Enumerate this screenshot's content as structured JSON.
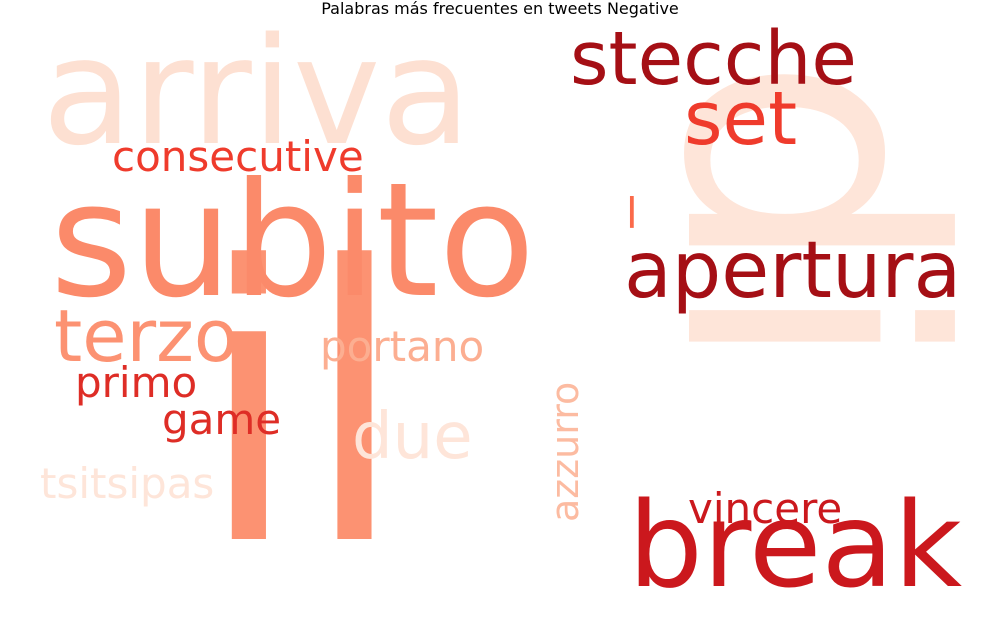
{
  "title": "Palabras más frecuentes en tweets Negative",
  "words": [
    {
      "text": "di",
      "color": "#fee5d9",
      "rotate": true
    },
    {
      "text": "arriva",
      "color": "#fde0d2"
    },
    {
      "text": "il",
      "color": "#fc9272"
    },
    {
      "text": "subito",
      "color": "#fb8a6a"
    },
    {
      "text": "stecche",
      "color": "#a50f15"
    },
    {
      "text": "set",
      "color": "#ef3b2c"
    },
    {
      "text": "consecutive",
      "color": "#ef3b2c"
    },
    {
      "text": "apertura",
      "color": "#a50f15"
    },
    {
      "text": "l",
      "color": "#fb6a4a"
    },
    {
      "text": "terzo",
      "color": "#fc9272"
    },
    {
      "text": "portano",
      "color": "#fcae91"
    },
    {
      "text": "primo",
      "color": "#de2d26"
    },
    {
      "text": "game",
      "color": "#de2d26"
    },
    {
      "text": "due",
      "color": "#fee5d9"
    },
    {
      "text": "azzurro",
      "color": "#fcbba1",
      "rotate": true
    },
    {
      "text": "tsitsipas",
      "color": "#fee5d9"
    },
    {
      "text": "vincere",
      "color": "#cb181d"
    },
    {
      "text": "break",
      "color": "#cb181d"
    }
  ]
}
